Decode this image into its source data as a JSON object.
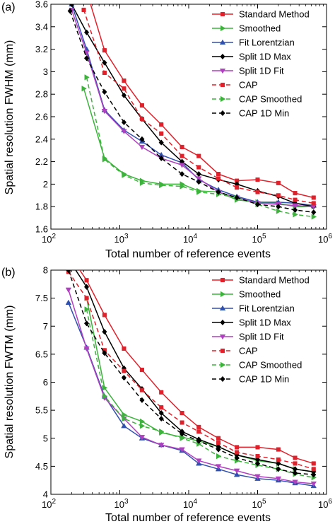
{
  "chart_data": [
    {
      "type": "line",
      "panel_label": "(a)",
      "xlabel": "Total number of reference events",
      "ylabel": "Spatial resolution FWHM (mm)",
      "xscale": "log",
      "xlim": [
        100,
        1000000
      ],
      "ylim": [
        1.6,
        3.6
      ],
      "x_tick_labels": [
        {
          "base": "10",
          "exp": "2"
        },
        {
          "base": "10",
          "exp": "3"
        },
        {
          "base": "10",
          "exp": "4"
        },
        {
          "base": "10",
          "exp": "5"
        },
        {
          "base": "10",
          "exp": "6"
        }
      ],
      "y_ticks": [
        1.6,
        1.8,
        2,
        2.2,
        2.4,
        2.6,
        2.8,
        3,
        3.2,
        3.4,
        3.6
      ],
      "y_tick_labels": [
        "1.6",
        "1.8",
        "2",
        "2.2",
        "2.4",
        "2.6",
        "2.8",
        "3",
        "3.2",
        "3.4",
        "3.6"
      ],
      "grid": false,
      "legend_position": "top-right",
      "series": [
        {
          "name": "Standard Method",
          "color": "#e0202a",
          "dash": "solid",
          "marker": "square",
          "x": [
            300,
            600,
            1150,
            2100,
            4000,
            8000,
            14000,
            27000,
            50000,
            100000,
            200000,
            350000,
            650000
          ],
          "y": [
            3.8,
            3.19,
            2.92,
            2.7,
            2.53,
            2.33,
            2.25,
            2.09,
            2.03,
            2.04,
            2.01,
            1.92,
            1.88
          ]
        },
        {
          "name": "Smoothed",
          "color": "#3cb43c",
          "dash": "solid",
          "marker": "triangle-right",
          "x": [
            300,
            600,
            1150,
            2100,
            4000,
            8000,
            14000,
            27000,
            50000,
            100000,
            200000,
            350000,
            650000
          ],
          "y": [
            2.85,
            2.23,
            2.09,
            2.03,
            2.0,
            2.0,
            1.94,
            1.93,
            1.86,
            1.84,
            1.83,
            1.8,
            1.8
          ]
        },
        {
          "name": "Fit Lorentzian",
          "color": "#3050b0",
          "dash": "solid",
          "marker": "triangle-up",
          "x": [
            200,
            330,
            600,
            1150,
            2100,
            4000,
            8000,
            14000,
            27000,
            50000,
            100000,
            200000,
            350000,
            650000
          ],
          "y": [
            3.6,
            3.2,
            2.66,
            2.48,
            2.38,
            2.26,
            2.19,
            2.04,
            1.95,
            1.89,
            1.84,
            1.84,
            1.83,
            1.81
          ]
        },
        {
          "name": "Split 1D Max",
          "color": "#000000",
          "dash": "solid",
          "marker": "diamond",
          "x": [
            200,
            330,
            600,
            1150,
            2100,
            4000,
            8000,
            14000,
            27000,
            50000,
            100000,
            200000,
            350000,
            650000
          ],
          "y": [
            3.6,
            3.35,
            3.08,
            2.79,
            2.58,
            2.37,
            2.2,
            2.09,
            2.04,
            2.0,
            1.94,
            1.89,
            1.83,
            1.8
          ]
        },
        {
          "name": "Split 1D Fit",
          "color": "#b040c0",
          "dash": "solid",
          "marker": "triangle-down",
          "x": [
            200,
            330,
            600,
            1150,
            2100,
            4000,
            8000,
            14000,
            27000,
            50000,
            100000,
            200000,
            350000,
            650000
          ],
          "y": [
            3.55,
            3.17,
            2.65,
            2.47,
            2.33,
            2.23,
            2.17,
            2.05,
            1.93,
            1.88,
            1.83,
            1.82,
            1.81,
            1.8
          ]
        },
        {
          "name": "CAP",
          "color": "#e0202a",
          "dash": "dashed",
          "marker": "square",
          "x": [
            300,
            600,
            1150,
            2100,
            4000,
            8000,
            14000,
            27000,
            50000,
            100000,
            200000,
            350000,
            650000
          ],
          "y": [
            3.55,
            2.99,
            2.85,
            2.58,
            2.45,
            2.25,
            2.15,
            2.05,
            1.97,
            1.93,
            1.9,
            1.86,
            1.83
          ]
        },
        {
          "name": "CAP Smoothed",
          "color": "#3cb43c",
          "dash": "dashed",
          "marker": "triangle-right",
          "x": [
            330,
            600,
            1150,
            2100,
            4000,
            8000,
            14000,
            27000,
            50000,
            100000,
            200000,
            350000,
            650000
          ],
          "y": [
            2.95,
            2.22,
            2.08,
            2.01,
            1.99,
            1.98,
            1.93,
            1.91,
            1.88,
            1.82,
            1.76,
            1.73,
            1.71
          ]
        },
        {
          "name": "CAP 1D Min",
          "color": "#000000",
          "dash": "dashed",
          "marker": "diamond",
          "x": [
            190,
            330,
            600,
            1150,
            2100,
            4000,
            8000,
            14000,
            27000,
            50000,
            100000,
            200000,
            350000,
            650000
          ],
          "y": [
            3.54,
            3.12,
            2.82,
            2.55,
            2.4,
            2.23,
            2.09,
            2.02,
            1.93,
            1.88,
            1.82,
            1.8,
            1.77,
            1.75
          ]
        }
      ]
    },
    {
      "type": "line",
      "panel_label": "(b)",
      "xlabel": "Total number of reference events",
      "ylabel": "Spatial resolution FWTM (mm)",
      "xscale": "log",
      "xlim": [
        100,
        1000000
      ],
      "ylim": [
        4,
        8
      ],
      "x_tick_labels": [
        {
          "base": "10",
          "exp": "2"
        },
        {
          "base": "10",
          "exp": "3"
        },
        {
          "base": "10",
          "exp": "4"
        },
        {
          "base": "10",
          "exp": "5"
        },
        {
          "base": "10",
          "exp": "6"
        }
      ],
      "y_ticks": [
        4,
        4.5,
        5,
        5.5,
        6,
        6.5,
        7,
        7.5,
        8
      ],
      "y_tick_labels": [
        "4",
        "4.5",
        "5",
        "5.5",
        "6",
        "6.5",
        "7",
        "7.5",
        "8"
      ],
      "grid": false,
      "legend_position": "top-right",
      "series": [
        {
          "name": "Standard Method",
          "color": "#e0202a",
          "dash": "solid",
          "marker": "square",
          "x": [
            180,
            330,
            600,
            1150,
            2100,
            4000,
            8000,
            14000,
            27000,
            50000,
            100000,
            200000,
            350000,
            650000
          ],
          "y": [
            8.3,
            7.82,
            7.2,
            6.6,
            6.22,
            5.82,
            5.45,
            5.2,
            5.0,
            4.84,
            4.84,
            4.8,
            4.65,
            4.55
          ]
        },
        {
          "name": "Smoothed",
          "color": "#3cb43c",
          "dash": "solid",
          "marker": "triangle-right",
          "x": [
            330,
            600,
            1150,
            2100,
            4000,
            8000,
            14000,
            27000,
            50000,
            100000,
            200000,
            350000,
            650000
          ],
          "y": [
            7.5,
            5.9,
            5.42,
            5.3,
            5.1,
            5.02,
            4.95,
            4.85,
            4.7,
            4.6,
            4.55,
            4.45,
            4.4
          ]
        },
        {
          "name": "Fit Lorentzian",
          "color": "#3050b0",
          "dash": "solid",
          "marker": "triangle-up",
          "x": [
            180,
            330,
            600,
            1150,
            2100,
            4000,
            8000,
            14000,
            27000,
            50000,
            100000,
            200000,
            350000,
            650000
          ],
          "y": [
            7.42,
            6.62,
            5.75,
            5.22,
            5.0,
            4.88,
            4.78,
            4.55,
            4.45,
            4.35,
            4.28,
            4.25,
            4.2,
            4.15
          ]
        },
        {
          "name": "Split 1D Max",
          "color": "#000000",
          "dash": "solid",
          "marker": "diamond",
          "x": [
            180,
            330,
            600,
            1150,
            2100,
            4000,
            8000,
            14000,
            27000,
            50000,
            100000,
            200000,
            350000,
            650000
          ],
          "y": [
            8.2,
            7.7,
            6.9,
            6.25,
            5.88,
            5.45,
            5.12,
            4.98,
            4.85,
            4.7,
            4.62,
            4.55,
            4.45,
            4.4
          ]
        },
        {
          "name": "Split 1D Fit",
          "color": "#b040c0",
          "dash": "solid",
          "marker": "triangle-down",
          "x": [
            180,
            330,
            600,
            1150,
            2100,
            4000,
            8000,
            14000,
            27000,
            50000,
            100000,
            200000,
            350000,
            650000
          ],
          "y": [
            7.65,
            6.6,
            5.72,
            5.35,
            5.02,
            4.88,
            4.8,
            4.6,
            4.5,
            4.42,
            4.32,
            4.28,
            4.22,
            4.19
          ]
        },
        {
          "name": "CAP",
          "color": "#e0202a",
          "dash": "dashed",
          "marker": "square",
          "x": [
            180,
            330,
            600,
            1150,
            2100,
            4000,
            8000,
            14000,
            27000,
            50000,
            100000,
            200000,
            350000,
            650000
          ],
          "y": [
            7.97,
            7.5,
            6.57,
            6.2,
            5.86,
            5.55,
            5.28,
            5.12,
            4.92,
            4.75,
            4.68,
            4.62,
            4.55,
            4.45
          ]
        },
        {
          "name": "CAP Smoothed",
          "color": "#3cb43c",
          "dash": "dashed",
          "marker": "triangle-right",
          "x": [
            330,
            600,
            1150,
            2100,
            4000,
            8000,
            14000,
            27000,
            50000,
            100000,
            200000,
            350000,
            650000
          ],
          "y": [
            7.3,
            5.75,
            5.35,
            5.22,
            5.12,
            5.0,
            4.9,
            4.68,
            4.6,
            4.52,
            4.45,
            4.36,
            4.3
          ]
        },
        {
          "name": "CAP 1D Min",
          "color": "#000000",
          "dash": "dashed",
          "marker": "diamond",
          "x": [
            180,
            330,
            600,
            1150,
            2100,
            4000,
            8000,
            14000,
            27000,
            50000,
            100000,
            200000,
            350000,
            650000
          ],
          "y": [
            8.0,
            7.05,
            6.52,
            6.08,
            5.68,
            5.35,
            5.08,
            4.95,
            4.8,
            4.65,
            4.55,
            4.45,
            4.38,
            4.35
          ]
        }
      ]
    }
  ]
}
